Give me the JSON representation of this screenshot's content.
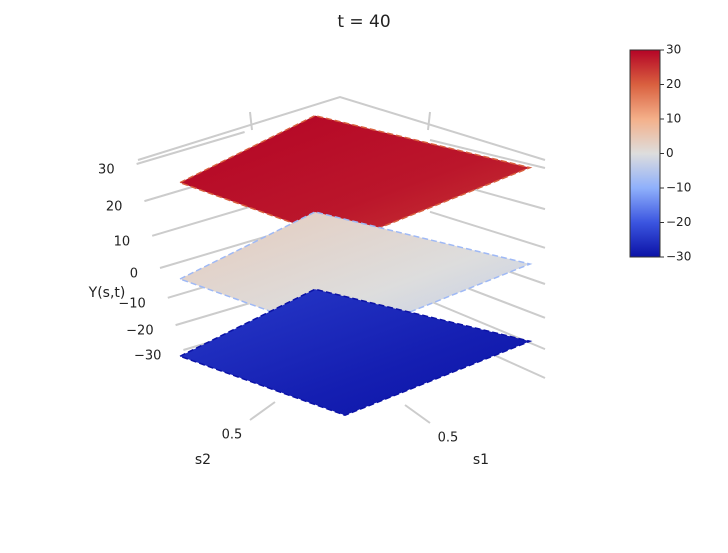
{
  "chart_data": {
    "type": "surface3d",
    "title": "t =  40",
    "xlabel": "s1",
    "ylabel": "s2",
    "zlabel": "Y(s,t)",
    "xticks": [
      0.5
    ],
    "yticks": [
      0.5
    ],
    "zlim": [
      -30,
      30
    ],
    "zticks": [
      30,
      20,
      10,
      0,
      {
        "value": -10,
        "label": "−10"
      },
      {
        "value": -20,
        "label": "−20"
      },
      {
        "value": -30,
        "label": "−30"
      }
    ],
    "surface_levels": [
      28,
      0,
      -28
    ],
    "colorscale": [
      "#0b12a6",
      "#3b55e0",
      "#8fb0fb",
      "#dddddd",
      "#f4b08a",
      "#d9603f",
      "#b40426"
    ],
    "clim": [
      -30,
      30
    ],
    "colorbar_ticks": [
      30,
      20,
      10,
      0,
      {
        "value": -10,
        "label": "−10"
      },
      {
        "value": -20,
        "label": "−20"
      },
      {
        "value": -30,
        "label": "−30"
      }
    ]
  }
}
